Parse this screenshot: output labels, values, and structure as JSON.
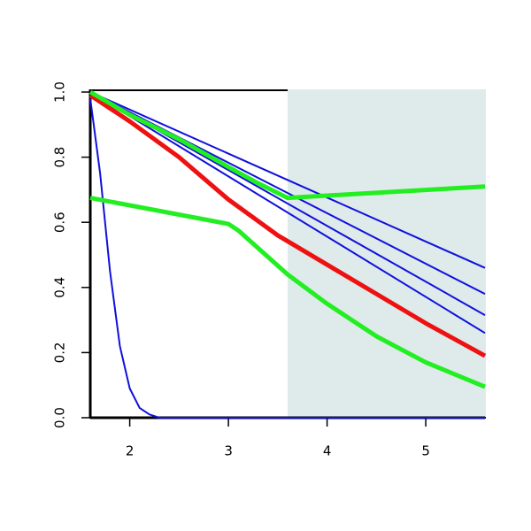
{
  "chart_data": {
    "type": "line",
    "xlim": [
      1.6,
      5.6
    ],
    "ylim": [
      0,
      1
    ],
    "xticks": [
      2,
      3,
      4,
      5
    ],
    "yticks": [
      {
        "value": 0,
        "label": "0.0"
      },
      {
        "value": 0.2,
        "label": "0.2"
      },
      {
        "value": 0.4,
        "label": "0.4"
      },
      {
        "value": 0.6,
        "label": "0.6"
      },
      {
        "value": 0.8,
        "label": "0.8"
      },
      {
        "value": 1,
        "label": "1.0"
      }
    ],
    "shaded_x": [
      3.6,
      5.6
    ],
    "shade_color": "#dfeaea",
    "series": [
      {
        "color": "#1010dd",
        "x": [
          1.6,
          5.6
        ],
        "values": [
          1.0,
          0.46
        ]
      },
      {
        "color": "#1010dd",
        "x": [
          1.6,
          5.6
        ],
        "values": [
          1.0,
          0.38
        ]
      },
      {
        "color": "#1010dd",
        "x": [
          1.6,
          5.6
        ],
        "values": [
          1.0,
          0.315
        ]
      },
      {
        "color": "#1010dd",
        "x": [
          1.6,
          5.6
        ],
        "values": [
          1.0,
          0.26
        ]
      },
      {
        "color": "#1010dd",
        "x": [
          1.6,
          1.7,
          1.8,
          1.9,
          2.0,
          2.1,
          2.2,
          2.3,
          5.6
        ],
        "values": [
          0.98,
          0.75,
          0.45,
          0.22,
          0.09,
          0.03,
          0.01,
          0.0,
          0.0
        ]
      },
      {
        "color": "#ee1111",
        "x": [
          1.6,
          2.0,
          2.5,
          3.0,
          3.5,
          4.0,
          4.5,
          5.0,
          5.6
        ],
        "values": [
          0.99,
          0.91,
          0.8,
          0.67,
          0.56,
          0.47,
          0.38,
          0.29,
          0.19
        ]
      },
      {
        "color": "#22ee22",
        "x": [
          1.6,
          2.0,
          2.5,
          3.0,
          3.3,
          3.6,
          5.6
        ],
        "values": [
          1.0,
          0.93,
          0.855,
          0.77,
          0.72,
          0.675,
          0.71
        ]
      },
      {
        "color": "#22ee22",
        "x": [
          1.6,
          3.0,
          3.1,
          3.6,
          4.0,
          4.5,
          5.0,
          5.6
        ],
        "values": [
          0.675,
          0.595,
          0.575,
          0.44,
          0.35,
          0.25,
          0.17,
          0.095
        ]
      }
    ]
  }
}
